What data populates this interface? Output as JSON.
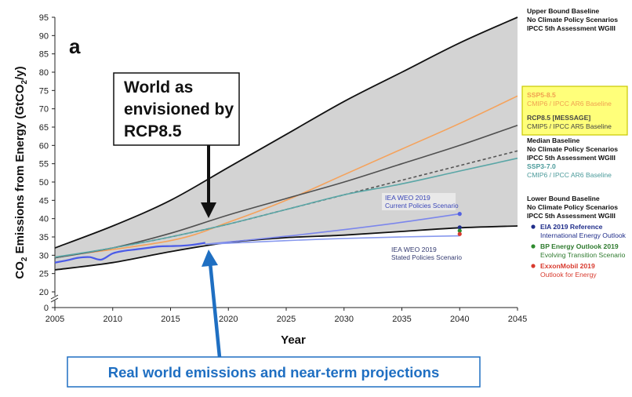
{
  "chart_data": {
    "type": "line",
    "panel_label": "a",
    "xlabel": "Year",
    "ylabel_main": "CO",
    "ylabel_sub": "2",
    "ylabel_rest": " Emissions from Energy (GtCO",
    "ylabel_sub2": "2",
    "ylabel_end": "/y)",
    "xlim": [
      2005,
      2045
    ],
    "ylim": [
      20,
      95
    ],
    "y_axis_break": true,
    "x_ticks": [
      "2005",
      "2010",
      "2015",
      "2020",
      "2025",
      "2030",
      "2035",
      "2040",
      "2045"
    ],
    "y_ticks": [
      "0",
      "20",
      "25",
      "30",
      "35",
      "40",
      "45",
      "50",
      "55",
      "60",
      "65",
      "70",
      "75",
      "80",
      "85",
      "90",
      "95"
    ],
    "range_band": {
      "upper": [
        [
          2005,
          32
        ],
        [
          2010,
          38
        ],
        [
          2015,
          45
        ],
        [
          2020,
          54
        ],
        [
          2025,
          63
        ],
        [
          2030,
          72
        ],
        [
          2035,
          80
        ],
        [
          2040,
          88
        ],
        [
          2045,
          95
        ]
      ],
      "lower": [
        [
          2005,
          26
        ],
        [
          2010,
          28
        ],
        [
          2015,
          31
        ],
        [
          2020,
          33.5
        ],
        [
          2025,
          34.8
        ],
        [
          2030,
          35.5
        ],
        [
          2035,
          36.5
        ],
        [
          2040,
          37.5
        ],
        [
          2045,
          38
        ]
      ]
    },
    "series": [
      {
        "key": "ssp585",
        "color": "#f5a25b",
        "points": [
          [
            2005,
            29.5
          ],
          [
            2015,
            34
          ],
          [
            2020,
            39
          ],
          [
            2025,
            45
          ],
          [
            2030,
            52
          ],
          [
            2035,
            59
          ],
          [
            2040,
            66
          ],
          [
            2045,
            73.5
          ]
        ]
      },
      {
        "key": "rcp85",
        "color": "#505050",
        "points": [
          [
            2005,
            29.3
          ],
          [
            2010,
            32
          ],
          [
            2015,
            36
          ],
          [
            2020,
            41
          ],
          [
            2025,
            45.5
          ],
          [
            2030,
            50
          ],
          [
            2035,
            55
          ],
          [
            2040,
            60
          ],
          [
            2045,
            65.5
          ]
        ]
      },
      {
        "key": "median",
        "color": "#555555",
        "dashed": true,
        "points": [
          [
            2005,
            29.3
          ],
          [
            2010,
            32
          ],
          [
            2015,
            35
          ],
          [
            2020,
            38.5
          ],
          [
            2025,
            42.5
          ],
          [
            2030,
            46.5
          ],
          [
            2035,
            50.5
          ],
          [
            2040,
            54.5
          ],
          [
            2045,
            58.5
          ]
        ]
      },
      {
        "key": "ssp370",
        "color": "#5aa6a6",
        "points": [
          [
            2005,
            29.5
          ],
          [
            2010,
            32
          ],
          [
            2015,
            35
          ],
          [
            2020,
            38.5
          ],
          [
            2025,
            42.5
          ],
          [
            2030,
            46.5
          ],
          [
            2035,
            49.5
          ],
          [
            2040,
            53
          ],
          [
            2045,
            56.5
          ]
        ]
      },
      {
        "key": "iea_cps",
        "color": "#7b86ec",
        "points": [
          [
            2018,
            33
          ],
          [
            2025,
            35.2
          ],
          [
            2030,
            37
          ],
          [
            2035,
            39
          ],
          [
            2040,
            41.3
          ]
        ]
      },
      {
        "key": "iea_sps",
        "color": "#8899ee",
        "points": [
          [
            2018,
            33
          ],
          [
            2025,
            34
          ],
          [
            2030,
            34.6
          ],
          [
            2035,
            35
          ],
          [
            2040,
            35.3
          ]
        ]
      },
      {
        "key": "historical",
        "color": "#4a5ae8",
        "points": [
          [
            2005,
            28
          ],
          [
            2006,
            28.6
          ],
          [
            2007,
            29.3
          ],
          [
            2008,
            29.5
          ],
          [
            2009,
            28.8
          ],
          [
            2010,
            30.5
          ],
          [
            2011,
            31.2
          ],
          [
            2012,
            31.6
          ],
          [
            2013,
            32
          ],
          [
            2014,
            32.4
          ],
          [
            2015,
            32.5
          ],
          [
            2016,
            32.6
          ],
          [
            2017,
            32.9
          ],
          [
            2018,
            33.4
          ]
        ]
      }
    ],
    "markers": [
      {
        "key": "iea_cps",
        "x": 2040,
        "y": 41.3,
        "color": "#5462e0"
      },
      {
        "key": "eia",
        "x": 2040,
        "y": 37.6,
        "color": "#1f2d8a"
      },
      {
        "key": "bp",
        "x": 2040,
        "y": 36.7,
        "color": "#2e8b2e"
      },
      {
        "key": "exxon",
        "x": 2040,
        "y": 35.8,
        "color": "#d83a2e"
      }
    ],
    "inline_labels": {
      "iea_cps_title": "IEA WEO 2019",
      "iea_cps_sub": "Current Policies Scenario",
      "iea_sps_title": "IEA WEO 2019",
      "iea_sps_sub": "Stated Policies Scenario"
    }
  },
  "legend": {
    "upper": [
      "Upper Bound Baseline",
      "No Climate Policy Scenarios",
      "IPCC 5th Assessment WGIII"
    ],
    "highlight": {
      "ssp585_title": "SSP5-8.5",
      "ssp585_sub": "CMIP6 / IPCC AR6 Baseline",
      "rcp85_title": "RCP8.5 [MESSAGE]",
      "rcp85_sub": "CMIP5 / IPCC AR5 Baseline",
      "fill": "#ffff7a",
      "border": "#c8c800"
    },
    "median": [
      "Median Baseline",
      "No Climate Policy Scenarios",
      "IPCC 5th Assessment WGIII"
    ],
    "ssp370_title": "SSP3-7.0",
    "ssp370_sub": "CMIP6 / IPCC AR6 Baseline",
    "lower": [
      "Lower Bound Baseline",
      "No Climate Policy Scenarios",
      "IPCC 5th Assessment WGIII"
    ],
    "eia_title": "EIA 2019 Reference",
    "eia_sub": "International Energy Outlook",
    "bp_title": "BP Energy Outlook 2019",
    "bp_sub": "Evolving Transition Scenario",
    "exxon_title": "ExxonMobil 2019",
    "exxon_sub": "Outlook for Energy"
  },
  "annotations": {
    "rcp_callout": [
      "World as",
      "envisioned by",
      "RCP8.5"
    ],
    "real_world": "Real world emissions and near-term projections",
    "real_world_color": "#1f6fc2"
  }
}
